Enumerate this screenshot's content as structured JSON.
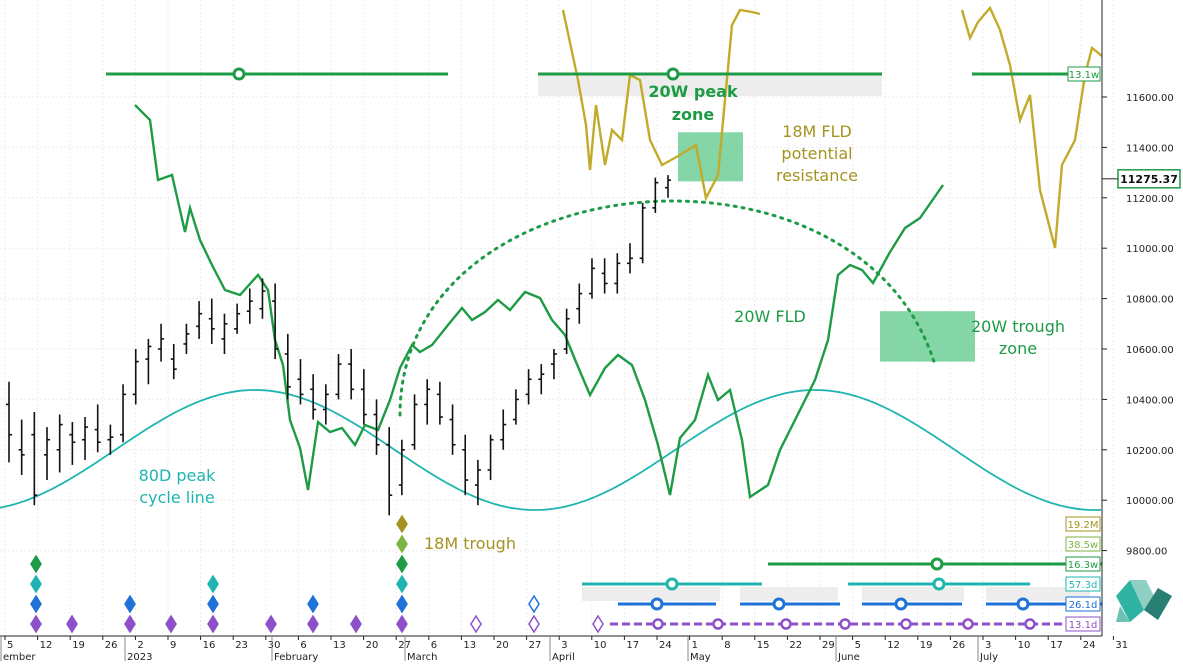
{
  "chart_data": {
    "type": "line",
    "title": "",
    "y_axis": {
      "ticks": [
        "11600.00",
        "11400.00",
        "11200.00",
        "11000.00",
        "10800.00",
        "10600.00",
        "10400.00",
        "10200.00",
        "10000.00",
        "9800.00"
      ],
      "range": [
        9730,
        11900
      ],
      "position": "right"
    },
    "x_axis": {
      "day_ticks": [
        "5",
        "12",
        "19",
        "26",
        "2",
        "9",
        "16",
        "23",
        "30",
        "6",
        "13",
        "20",
        "27",
        "6",
        "13",
        "20",
        "27",
        "3",
        "10",
        "17",
        "24",
        "1",
        "8",
        "15",
        "22",
        "29",
        "5",
        "12",
        "19",
        "26",
        "3",
        "10",
        "17",
        "24",
        "31"
      ],
      "month_labels": [
        "ember",
        "2023",
        "February",
        "March",
        "April",
        "May",
        "June",
        "July"
      ]
    },
    "last_price": {
      "label": "11275.37",
      "value": 11275.37
    },
    "price_bars": [
      [
        10380,
        10470,
        10150,
        10260
      ],
      [
        10200,
        10320,
        10100,
        10180
      ],
      [
        10260,
        10350,
        9980,
        10020
      ],
      [
        10180,
        10290,
        10080,
        10240
      ],
      [
        10200,
        10340,
        10110,
        10300
      ],
      [
        10260,
        10310,
        10140,
        10230
      ],
      [
        10240,
        10330,
        10160,
        10290
      ],
      [
        10280,
        10380,
        10190,
        10230
      ],
      [
        10240,
        10300,
        10180,
        10250
      ],
      [
        10260,
        10460,
        10230,
        10420
      ],
      [
        10420,
        10600,
        10380,
        10550
      ],
      [
        10560,
        10640,
        10460,
        10610
      ],
      [
        10600,
        10700,
        10550,
        10640
      ],
      [
        10560,
        10620,
        10480,
        10520
      ],
      [
        10620,
        10700,
        10580,
        10660
      ],
      [
        10690,
        10790,
        10640,
        10740
      ],
      [
        10720,
        10800,
        10620,
        10680
      ],
      [
        10640,
        10740,
        10580,
        10700
      ],
      [
        10680,
        10780,
        10660,
        10740
      ],
      [
        10750,
        10840,
        10700,
        10790
      ],
      [
        10760,
        10880,
        10720,
        10830
      ],
      [
        10790,
        10860,
        10560,
        10600
      ],
      [
        10580,
        10660,
        10400,
        10450
      ],
      [
        10480,
        10560,
        10380,
        10420
      ],
      [
        10440,
        10500,
        10320,
        10360
      ],
      [
        10360,
        10460,
        10300,
        10420
      ],
      [
        10420,
        10580,
        10400,
        10540
      ],
      [
        10540,
        10600,
        10400,
        10440
      ],
      [
        10440,
        10520,
        10300,
        10340
      ],
      [
        10340,
        10400,
        10180,
        10220
      ],
      [
        10220,
        10290,
        9940,
        10020
      ],
      [
        10060,
        10240,
        10020,
        10200
      ],
      [
        10220,
        10420,
        10200,
        10380
      ],
      [
        10380,
        10480,
        10300,
        10440
      ],
      [
        10420,
        10470,
        10300,
        10330
      ],
      [
        10320,
        10380,
        10180,
        10220
      ],
      [
        10200,
        10260,
        10020,
        10080
      ],
      [
        10060,
        10160,
        9980,
        10120
      ],
      [
        10120,
        10260,
        10080,
        10240
      ],
      [
        10240,
        10360,
        10200,
        10300
      ],
      [
        10320,
        10440,
        10300,
        10400
      ],
      [
        10420,
        10520,
        10380,
        10480
      ],
      [
        10480,
        10540,
        10420,
        10500
      ],
      [
        10540,
        10600,
        10480,
        10580
      ],
      [
        10600,
        10760,
        10580,
        10720
      ],
      [
        10760,
        10860,
        10700,
        10820
      ],
      [
        10820,
        10960,
        10800,
        10920
      ],
      [
        10900,
        10960,
        10820,
        10860
      ],
      [
        10860,
        10980,
        10820,
        10940
      ],
      [
        10940,
        11020,
        10900,
        10960
      ],
      [
        10960,
        11180,
        10940,
        11160
      ],
      [
        11160,
        11280,
        11140,
        11260
      ],
      [
        11240,
        11290,
        11200,
        11270
      ]
    ],
    "series": [
      {
        "name": "20W FLD",
        "color": "#1e9b45"
      },
      {
        "name": "18M FLD",
        "color": "#c2ab2a"
      },
      {
        "name": "80D peak cycle line",
        "color": "#1eb5b0"
      }
    ],
    "annotations": {
      "peak_zone": {
        "label": "20W peak zone",
        "x_range": [
          "Apr 26",
          "May 10"
        ],
        "y_range": [
          11265,
          11460
        ]
      },
      "trough_zone": {
        "label": "20W trough zone",
        "x_range": [
          "Jun 6",
          "Jun 26"
        ],
        "y_range": [
          10550,
          10750
        ]
      },
      "fld18_label": "18M FLD potential resistance",
      "fld20_label": "20W FLD",
      "sine_label": "80D peak cycle line",
      "trough_label": "18M trough"
    },
    "cycle_legend": [
      {
        "label": "19.2M",
        "color": "#a59320"
      },
      {
        "label": "38.5w",
        "color": "#7cb342"
      },
      {
        "label": "16.3w",
        "color": "#1e9b45"
      },
      {
        "label": "57.3d",
        "color": "#1eb5b0"
      },
      {
        "label": "26.1d",
        "color": "#1e72d8"
      },
      {
        "label": "13.1d",
        "color": "#8e50c8"
      }
    ],
    "top_marker_label": "13.1w",
    "accent_color": "#1e9b45"
  }
}
